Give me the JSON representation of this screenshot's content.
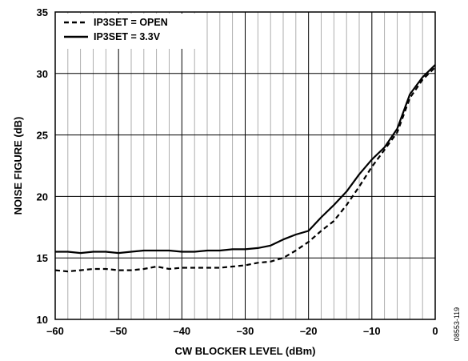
{
  "figure_id": "08553-119",
  "chart_data": {
    "type": "line",
    "title": "",
    "xlabel": "CW BLOCKER LEVEL (dBm)",
    "ylabel": "NOISE FIGURE (dB)",
    "xlim": [
      -60,
      0
    ],
    "ylim": [
      10,
      35
    ],
    "x_major_ticks": [
      -60,
      -50,
      -40,
      -30,
      -20,
      -10,
      0
    ],
    "x_tick_labels": [
      "–60",
      "–50",
      "–40",
      "–30",
      "–20",
      "–10",
      "0"
    ],
    "x_minor_step": 2,
    "y_major_ticks": [
      10,
      15,
      20,
      25,
      30,
      35
    ],
    "y_tick_labels": [
      "10",
      "15",
      "20",
      "25",
      "30",
      "35"
    ],
    "grid": true,
    "legend_position": "top-left",
    "series": [
      {
        "name": "IP3SET = OPEN",
        "style": "dashed",
        "color": "#000000",
        "x": [
          -60,
          -58,
          -56,
          -54,
          -52,
          -50,
          -48,
          -46,
          -44,
          -42,
          -40,
          -38,
          -36,
          -34,
          -32,
          -30,
          -28,
          -26,
          -24,
          -22,
          -20,
          -18,
          -16,
          -14,
          -12,
          -10,
          -8,
          -6,
          -4,
          -2,
          0
        ],
        "y": [
          14.0,
          13.9,
          14.0,
          14.1,
          14.1,
          14.0,
          14.0,
          14.1,
          14.3,
          14.1,
          14.2,
          14.2,
          14.2,
          14.2,
          14.3,
          14.4,
          14.6,
          14.7,
          15.0,
          15.6,
          16.3,
          17.2,
          18.0,
          19.3,
          20.8,
          22.4,
          23.8,
          25.2,
          28.0,
          29.5,
          30.5
        ]
      },
      {
        "name": "IP3SET = 3.3V",
        "style": "solid",
        "color": "#000000",
        "x": [
          -60,
          -58,
          -56,
          -54,
          -52,
          -50,
          -48,
          -46,
          -44,
          -42,
          -40,
          -38,
          -36,
          -34,
          -32,
          -30,
          -28,
          -26,
          -24,
          -22,
          -20,
          -18,
          -16,
          -14,
          -12,
          -10,
          -8,
          -6,
          -4,
          -2,
          0
        ],
        "y": [
          15.5,
          15.5,
          15.4,
          15.5,
          15.5,
          15.4,
          15.5,
          15.6,
          15.6,
          15.6,
          15.5,
          15.5,
          15.6,
          15.6,
          15.7,
          15.7,
          15.8,
          16.0,
          16.5,
          16.9,
          17.2,
          18.3,
          19.3,
          20.4,
          21.8,
          23.0,
          24.0,
          25.5,
          28.3,
          29.7,
          30.7
        ]
      }
    ]
  }
}
